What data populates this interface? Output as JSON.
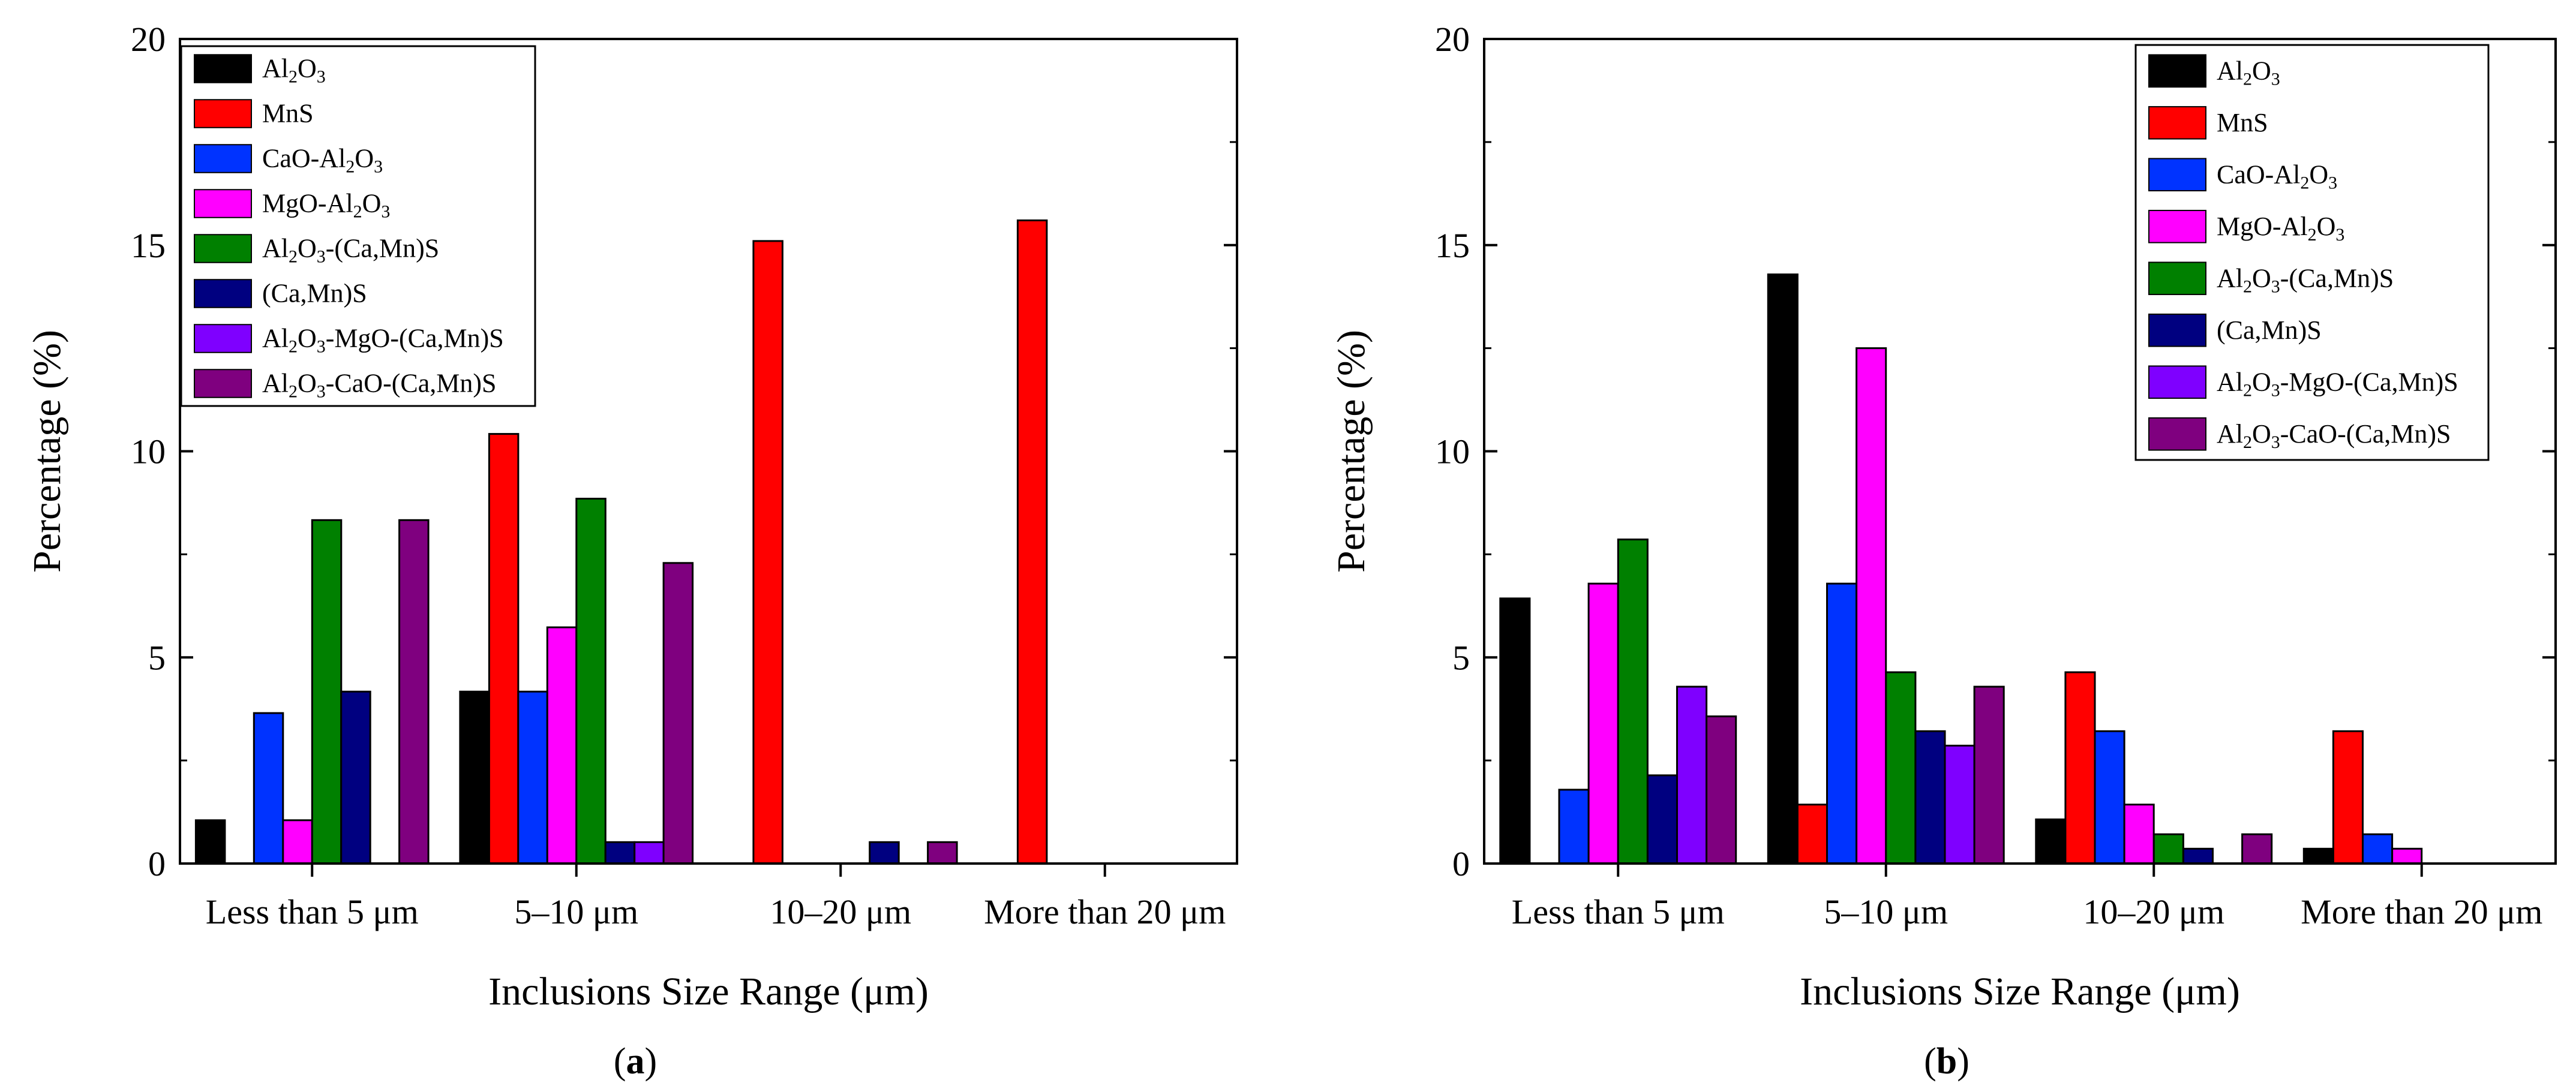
{
  "chart_data": [
    {
      "type": "bar",
      "panel_label": "(a)",
      "panel_letter": "a",
      "xlabel": "Inclusions Size Range (μm)",
      "ylabel": "Percentage (%)",
      "ylim": [
        0,
        20
      ],
      "yticks": [
        "0",
        "5",
        "10",
        "15",
        "20"
      ],
      "legend_position": "top-left",
      "categories": [
        "Less than 5 μm",
        "5–10 μm",
        "10–20 μm",
        "More than 20 μm"
      ],
      "series": [
        {
          "name": "Al2O3",
          "sub": "3",
          "values": [
            1.05,
            4.17,
            0,
            0
          ]
        },
        {
          "name": "MnS",
          "values": [
            0,
            10.42,
            15.1,
            15.6
          ]
        },
        {
          "name": "CaO-Al2O3",
          "sub": "3",
          "values": [
            3.65,
            4.17,
            0,
            0
          ]
        },
        {
          "name": "MgO-Al2O3",
          "sub": "3",
          "values": [
            1.05,
            5.73,
            0,
            0
          ]
        },
        {
          "name": "Al2O3-(Ca,Mn)S",
          "values": [
            8.33,
            8.85,
            0,
            0
          ]
        },
        {
          "name": "(Ca,Mn)S",
          "values": [
            4.17,
            0.52,
            0.52,
            0
          ]
        },
        {
          "name": "Al2O3-MgO-(Ca,Mn)S",
          "values": [
            0,
            0.52,
            0,
            0
          ]
        },
        {
          "name": "Al2O3-CaO-(Ca,Mn)S",
          "values": [
            8.33,
            7.29,
            0.52,
            0
          ]
        }
      ]
    },
    {
      "type": "bar",
      "panel_label": "(b)",
      "panel_letter": "b",
      "xlabel": "Inclusions Size Range (μm)",
      "ylabel": "Percentage (%)",
      "ylim": [
        0,
        20
      ],
      "yticks": [
        "0",
        "5",
        "10",
        "15",
        "20"
      ],
      "legend_position": "top-right",
      "categories": [
        "Less than 5 μm",
        "5–10 μm",
        "10–20 μm",
        "More than 20 μm"
      ],
      "series": [
        {
          "name": "Al2O3",
          "values": [
            6.43,
            14.29,
            1.07,
            0.36
          ]
        },
        {
          "name": "MnS",
          "values": [
            0,
            1.43,
            4.64,
            3.21
          ]
        },
        {
          "name": "CaO-Al2O3",
          "values": [
            1.79,
            6.79,
            3.21,
            0.71
          ]
        },
        {
          "name": "MgO-Al2O3",
          "values": [
            6.79,
            12.5,
            1.43,
            0.36
          ]
        },
        {
          "name": "Al2O3-(Ca,Mn)S",
          "values": [
            7.86,
            4.64,
            0.71,
            0
          ]
        },
        {
          "name": "(Ca,Mn)S",
          "values": [
            2.14,
            3.21,
            0.36,
            0
          ]
        },
        {
          "name": "Al2O3-MgO-(Ca,Mn)S",
          "values": [
            4.29,
            2.86,
            0,
            0
          ]
        },
        {
          "name": "Al2O3-CaO-(Ca,Mn)S",
          "values": [
            3.57,
            4.29,
            0.71,
            0
          ]
        }
      ]
    }
  ],
  "series_colors": [
    "#000000",
    "#ff0000",
    "#0033ff",
    "#ff00ff",
    "#008000",
    "#000080",
    "#7f00ff",
    "#7f007f"
  ],
  "legend_entries": [
    {
      "parts": [
        [
          "Al",
          ""
        ],
        [
          "2",
          "sub"
        ],
        [
          "O",
          ""
        ],
        [
          "3",
          "sub"
        ]
      ]
    },
    {
      "parts": [
        [
          "MnS",
          ""
        ]
      ]
    },
    {
      "parts": [
        [
          "CaO-Al",
          ""
        ],
        [
          "2",
          "sub"
        ],
        [
          "O",
          ""
        ],
        [
          "3",
          "sub"
        ]
      ]
    },
    {
      "parts": [
        [
          "MgO-Al",
          ""
        ],
        [
          "2",
          "sub"
        ],
        [
          "O",
          ""
        ],
        [
          "3",
          "sub"
        ]
      ]
    },
    {
      "parts": [
        [
          "Al",
          ""
        ],
        [
          "2",
          "sub"
        ],
        [
          "O",
          ""
        ],
        [
          "3",
          "sub"
        ],
        [
          "-(Ca,Mn)S",
          ""
        ]
      ]
    },
    {
      "parts": [
        [
          "(Ca,Mn)S",
          ""
        ]
      ]
    },
    {
      "parts": [
        [
          "Al",
          ""
        ],
        [
          "2",
          "sub"
        ],
        [
          "O",
          ""
        ],
        [
          "3",
          "sub"
        ],
        [
          "-MgO-(Ca,Mn)S",
          ""
        ]
      ]
    },
    {
      "parts": [
        [
          "Al",
          ""
        ],
        [
          "2",
          "sub"
        ],
        [
          "O",
          ""
        ],
        [
          "3",
          "sub"
        ],
        [
          "-CaO-(Ca,Mn)S",
          ""
        ]
      ]
    }
  ]
}
